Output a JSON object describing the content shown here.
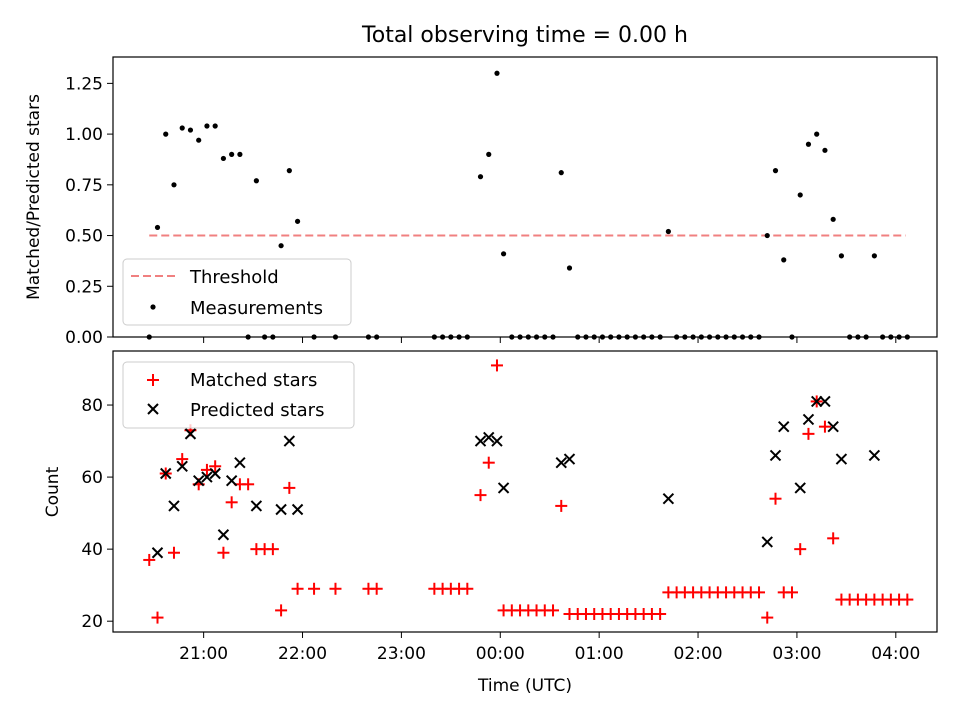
{
  "figure": {
    "title": "Total observing time = 0.00 h"
  },
  "chart_data": [
    {
      "type": "scatter",
      "title": "Total observing time = 0.00 h",
      "xlabel": "",
      "ylabel": "Matched/Predicted stars",
      "xlim": [
        "20:05",
        "04:25"
      ],
      "ylim": [
        0,
        1.38
      ],
      "y_ticks": [
        "0.00",
        "0.25",
        "0.50",
        "0.75",
        "1.00",
        "1.25"
      ],
      "legend": {
        "placement": "lower-left",
        "entries": [
          "Threshold",
          "Measurements"
        ]
      },
      "series": [
        {
          "name": "Threshold",
          "kind": "dashed-line",
          "color": "#f08080",
          "points": [
            [
              "20:27",
              0.5
            ],
            [
              "04:06",
              0.5
            ]
          ]
        },
        {
          "name": "Measurements",
          "kind": "dot",
          "color": "#000000",
          "points": [
            [
              "20:27",
              0.0
            ],
            [
              "20:32",
              0.54
            ],
            [
              "20:37",
              1.0
            ],
            [
              "20:42",
              0.75
            ],
            [
              "20:47",
              1.03
            ],
            [
              "20:52",
              1.02
            ],
            [
              "20:57",
              0.97
            ],
            [
              "21:02",
              1.04
            ],
            [
              "21:07",
              1.04
            ],
            [
              "21:12",
              0.88
            ],
            [
              "21:17",
              0.9
            ],
            [
              "21:22",
              0.9
            ],
            [
              "21:27",
              0.0
            ],
            [
              "21:32",
              0.77
            ],
            [
              "21:37",
              0.0
            ],
            [
              "21:42",
              0.0
            ],
            [
              "21:47",
              0.45
            ],
            [
              "21:52",
              0.82
            ],
            [
              "21:57",
              0.57
            ],
            [
              "22:07",
              0.0
            ],
            [
              "22:20",
              0.0
            ],
            [
              "22:40",
              0.0
            ],
            [
              "22:45",
              0.0
            ],
            [
              "23:20",
              0.0
            ],
            [
              "23:25",
              0.0
            ],
            [
              "23:30",
              0.0
            ],
            [
              "23:35",
              0.0
            ],
            [
              "23:40",
              0.0
            ],
            [
              "23:48",
              0.79
            ],
            [
              "23:53",
              0.9
            ],
            [
              "23:58",
              1.3
            ],
            [
              "00:02",
              0.41
            ],
            [
              "00:07",
              0.0
            ],
            [
              "00:12",
              0.0
            ],
            [
              "00:17",
              0.0
            ],
            [
              "00:22",
              0.0
            ],
            [
              "00:27",
              0.0
            ],
            [
              "00:32",
              0.0
            ],
            [
              "00:37",
              0.81
            ],
            [
              "00:42",
              0.34
            ],
            [
              "00:47",
              0.0
            ],
            [
              "00:52",
              0.0
            ],
            [
              "00:57",
              0.0
            ],
            [
              "01:02",
              0.0
            ],
            [
              "01:07",
              0.0
            ],
            [
              "01:12",
              0.0
            ],
            [
              "01:17",
              0.0
            ],
            [
              "01:22",
              0.0
            ],
            [
              "01:27",
              0.0
            ],
            [
              "01:32",
              0.0
            ],
            [
              "01:37",
              0.0
            ],
            [
              "01:42",
              0.52
            ],
            [
              "01:47",
              0.0
            ],
            [
              "01:52",
              0.0
            ],
            [
              "01:57",
              0.0
            ],
            [
              "02:02",
              0.0
            ],
            [
              "02:07",
              0.0
            ],
            [
              "02:12",
              0.0
            ],
            [
              "02:17",
              0.0
            ],
            [
              "02:22",
              0.0
            ],
            [
              "02:27",
              0.0
            ],
            [
              "02:32",
              0.0
            ],
            [
              "02:37",
              0.0
            ],
            [
              "02:42",
              0.5
            ],
            [
              "02:47",
              0.82
            ],
            [
              "02:52",
              0.38
            ],
            [
              "02:57",
              0.0
            ],
            [
              "03:02",
              0.7
            ],
            [
              "03:07",
              0.95
            ],
            [
              "03:12",
              1.0
            ],
            [
              "03:17",
              0.92
            ],
            [
              "03:22",
              0.58
            ],
            [
              "03:27",
              0.4
            ],
            [
              "03:32",
              0.0
            ],
            [
              "03:37",
              0.0
            ],
            [
              "03:42",
              0.0
            ],
            [
              "03:47",
              0.4
            ],
            [
              "03:52",
              0.0
            ],
            [
              "03:57",
              0.0
            ],
            [
              "04:02",
              0.0
            ],
            [
              "04:07",
              0.0
            ]
          ]
        }
      ]
    },
    {
      "type": "scatter",
      "title": "",
      "xlabel": "Time (UTC)",
      "ylabel": "Count",
      "xlim": [
        "20:05",
        "04:25"
      ],
      "ylim": [
        17,
        95
      ],
      "y_ticks": [
        "20",
        "40",
        "60",
        "80"
      ],
      "x_ticks": [
        "21:00",
        "22:00",
        "23:00",
        "00:00",
        "01:00",
        "02:00",
        "03:00",
        "04:00"
      ],
      "legend": {
        "placement": "top-left",
        "entries": [
          "Matched stars",
          "Predicted stars"
        ]
      },
      "series": [
        {
          "name": "Matched stars",
          "kind": "plus",
          "color": "#ff0000",
          "points": [
            [
              "20:27",
              37
            ],
            [
              "20:32",
              21
            ],
            [
              "20:37",
              61
            ],
            [
              "20:42",
              39
            ],
            [
              "20:47",
              65
            ],
            [
              "20:52",
              73
            ],
            [
              "20:57",
              58
            ],
            [
              "21:02",
              62
            ],
            [
              "21:07",
              63
            ],
            [
              "21:12",
              39
            ],
            [
              "21:17",
              53
            ],
            [
              "21:22",
              58
            ],
            [
              "21:27",
              58
            ],
            [
              "21:32",
              40
            ],
            [
              "21:37",
              40
            ],
            [
              "21:42",
              40
            ],
            [
              "21:47",
              23
            ],
            [
              "21:52",
              57
            ],
            [
              "21:57",
              29
            ],
            [
              "22:07",
              29
            ],
            [
              "22:20",
              29
            ],
            [
              "22:40",
              29
            ],
            [
              "22:45",
              29
            ],
            [
              "23:20",
              29
            ],
            [
              "23:25",
              29
            ],
            [
              "23:30",
              29
            ],
            [
              "23:35",
              29
            ],
            [
              "23:40",
              29
            ],
            [
              "23:48",
              55
            ],
            [
              "23:53",
              64
            ],
            [
              "23:58",
              91
            ],
            [
              "00:02",
              23
            ],
            [
              "00:07",
              23
            ],
            [
              "00:12",
              23
            ],
            [
              "00:17",
              23
            ],
            [
              "00:22",
              23
            ],
            [
              "00:27",
              23
            ],
            [
              "00:32",
              23
            ],
            [
              "00:37",
              52
            ],
            [
              "00:42",
              22
            ],
            [
              "00:47",
              22
            ],
            [
              "00:52",
              22
            ],
            [
              "00:57",
              22
            ],
            [
              "01:02",
              22
            ],
            [
              "01:07",
              22
            ],
            [
              "01:12",
              22
            ],
            [
              "01:17",
              22
            ],
            [
              "01:22",
              22
            ],
            [
              "01:27",
              22
            ],
            [
              "01:32",
              22
            ],
            [
              "01:37",
              22
            ],
            [
              "01:42",
              28
            ],
            [
              "01:47",
              28
            ],
            [
              "01:52",
              28
            ],
            [
              "01:57",
              28
            ],
            [
              "02:02",
              28
            ],
            [
              "02:07",
              28
            ],
            [
              "02:12",
              28
            ],
            [
              "02:17",
              28
            ],
            [
              "02:22",
              28
            ],
            [
              "02:27",
              28
            ],
            [
              "02:32",
              28
            ],
            [
              "02:37",
              28
            ],
            [
              "02:42",
              21
            ],
            [
              "02:47",
              54
            ],
            [
              "02:52",
              28
            ],
            [
              "02:57",
              28
            ],
            [
              "03:02",
              40
            ],
            [
              "03:07",
              72
            ],
            [
              "03:12",
              81
            ],
            [
              "03:17",
              74
            ],
            [
              "03:22",
              43
            ],
            [
              "03:27",
              26
            ],
            [
              "03:32",
              26
            ],
            [
              "03:37",
              26
            ],
            [
              "03:42",
              26
            ],
            [
              "03:47",
              26
            ],
            [
              "03:52",
              26
            ],
            [
              "03:57",
              26
            ],
            [
              "04:02",
              26
            ],
            [
              "04:07",
              26
            ]
          ]
        },
        {
          "name": "Predicted stars",
          "kind": "x",
          "color": "#000000",
          "points": [
            [
              "20:32",
              39
            ],
            [
              "20:37",
              61
            ],
            [
              "20:42",
              52
            ],
            [
              "20:47",
              63
            ],
            [
              "20:52",
              72
            ],
            [
              "20:57",
              59
            ],
            [
              "21:02",
              60
            ],
            [
              "21:07",
              61
            ],
            [
              "21:12",
              44
            ],
            [
              "21:17",
              59
            ],
            [
              "21:22",
              64
            ],
            [
              "21:32",
              52
            ],
            [
              "21:47",
              51
            ],
            [
              "21:52",
              70
            ],
            [
              "21:57",
              51
            ],
            [
              "23:48",
              70
            ],
            [
              "23:53",
              71
            ],
            [
              "23:58",
              70
            ],
            [
              "00:02",
              57
            ],
            [
              "00:37",
              64
            ],
            [
              "00:42",
              65
            ],
            [
              "01:42",
              54
            ],
            [
              "02:42",
              42
            ],
            [
              "02:47",
              66
            ],
            [
              "02:52",
              74
            ],
            [
              "03:02",
              57
            ],
            [
              "03:07",
              76
            ],
            [
              "03:12",
              81
            ],
            [
              "03:17",
              81
            ],
            [
              "03:22",
              74
            ],
            [
              "03:27",
              65
            ],
            [
              "03:47",
              66
            ]
          ]
        }
      ]
    }
  ]
}
